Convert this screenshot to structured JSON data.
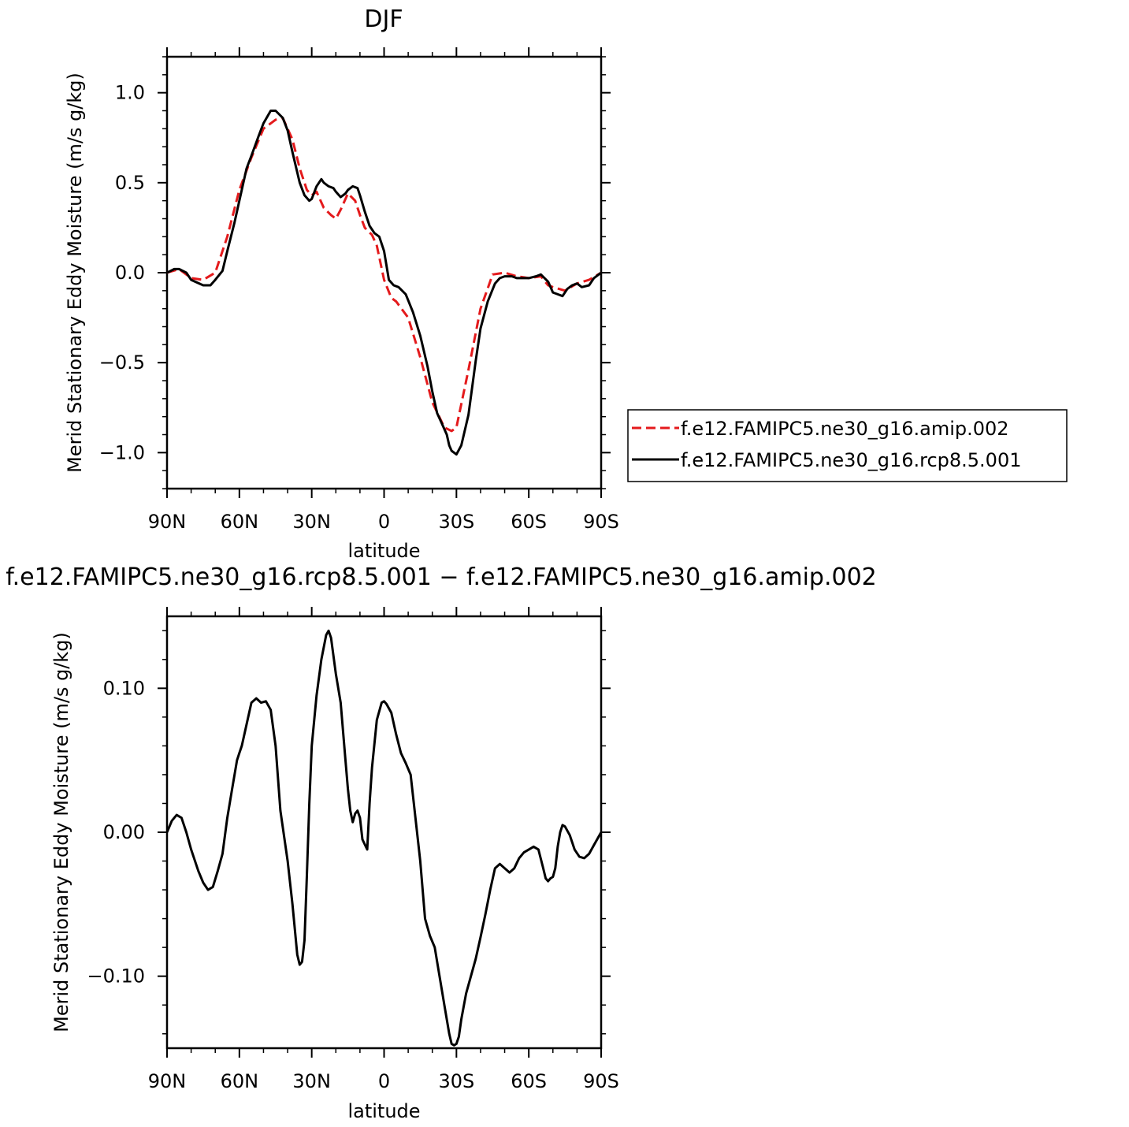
{
  "chart_data": [
    {
      "type": "line",
      "title": "DJF",
      "xlabel": "latitude",
      "ylabel": "Merid Stationary Eddy Moisture (m/s g/kg)",
      "xlim": [
        90,
        -90
      ],
      "ylim": [
        -1.2,
        1.2
      ],
      "x_ticks": [
        90,
        60,
        30,
        0,
        -30,
        -60,
        -90
      ],
      "x_tick_labels": [
        "90N",
        "60N",
        "30N",
        "0",
        "30S",
        "60S",
        "90S"
      ],
      "y_ticks": [
        1.0,
        0.5,
        0.0,
        -0.5,
        -1.0
      ],
      "y_tick_labels": [
        "1.0",
        "0.5",
        "0.0",
        "−0.5",
        "−1.0"
      ],
      "legend_position": "right",
      "series": [
        {
          "name": "f.e12.FAMIPC5.ne30_g16.amip.002",
          "color": "#e41a1c",
          "dash": "dashed",
          "x": [
            90,
            85,
            80,
            75,
            70,
            65,
            60,
            55,
            50,
            45,
            42,
            38,
            35,
            32,
            30,
            28,
            25,
            22,
            20,
            18,
            15,
            12,
            10,
            8,
            5,
            3,
            0,
            -3,
            -5,
            -10,
            -15,
            -20,
            -25,
            -28,
            -30,
            -35,
            -40,
            -45,
            -50,
            -55,
            -60,
            -65,
            -68,
            -70,
            -75,
            -80,
            -85,
            -90
          ],
          "values": [
            0.0,
            0.02,
            -0.03,
            -0.04,
            0.0,
            0.2,
            0.46,
            0.64,
            0.8,
            0.85,
            0.86,
            0.74,
            0.58,
            0.46,
            0.43,
            0.45,
            0.36,
            0.32,
            0.3,
            0.35,
            0.44,
            0.4,
            0.32,
            0.25,
            0.21,
            0.15,
            -0.04,
            -0.14,
            -0.16,
            -0.25,
            -0.47,
            -0.72,
            -0.86,
            -0.88,
            -0.86,
            -0.54,
            -0.2,
            -0.01,
            0.0,
            -0.02,
            -0.03,
            -0.02,
            -0.07,
            -0.08,
            -0.1,
            -0.06,
            -0.04,
            0.0
          ]
        },
        {
          "name": "f.e12.FAMIPC5.ne30_g16.rcp8.5.001",
          "color": "#000000",
          "dash": "solid",
          "x": [
            90,
            87,
            85,
            82,
            80,
            75,
            72,
            70,
            67,
            65,
            62,
            60,
            57,
            55,
            52,
            50,
            47,
            45,
            42,
            40,
            38,
            35,
            33,
            31,
            30,
            28,
            26,
            25,
            23,
            21,
            20,
            18,
            16,
            15,
            13,
            11,
            10,
            8,
            6,
            4,
            2,
            0,
            -2,
            -4,
            -6,
            -9,
            -12,
            -15,
            -18,
            -20,
            -22,
            -24,
            -26,
            -27,
            -28,
            -30,
            -32,
            -35,
            -38,
            -40,
            -43,
            -46,
            -48,
            -50,
            -53,
            -55,
            -58,
            -60,
            -63,
            -65,
            -68,
            -70,
            -72,
            -74,
            -76,
            -78,
            -80,
            -82,
            -85,
            -87,
            -90
          ],
          "values": [
            0.0,
            0.02,
            0.02,
            0.0,
            -0.04,
            -0.07,
            -0.07,
            -0.04,
            0.01,
            0.12,
            0.28,
            0.4,
            0.58,
            0.65,
            0.76,
            0.83,
            0.9,
            0.9,
            0.86,
            0.79,
            0.67,
            0.5,
            0.43,
            0.4,
            0.41,
            0.48,
            0.52,
            0.5,
            0.48,
            0.47,
            0.45,
            0.42,
            0.44,
            0.46,
            0.48,
            0.47,
            0.43,
            0.34,
            0.26,
            0.22,
            0.2,
            0.12,
            -0.04,
            -0.07,
            -0.08,
            -0.12,
            -0.22,
            -0.35,
            -0.52,
            -0.66,
            -0.78,
            -0.84,
            -0.9,
            -0.96,
            -0.99,
            -1.01,
            -0.96,
            -0.79,
            -0.49,
            -0.31,
            -0.16,
            -0.06,
            -0.03,
            -0.02,
            -0.02,
            -0.03,
            -0.03,
            -0.03,
            -0.02,
            -0.01,
            -0.05,
            -0.11,
            -0.12,
            -0.13,
            -0.09,
            -0.07,
            -0.06,
            -0.08,
            -0.07,
            -0.03,
            0.0
          ]
        }
      ]
    },
    {
      "type": "line",
      "title": "f.e12.FAMIPC5.ne30_g16.rcp8.5.001 − f.e12.FAMIPC5.ne30_g16.amip.002",
      "xlabel": "latitude",
      "ylabel": "Merid Stationary Eddy Moisture (m/s g/kg)",
      "xlim": [
        90,
        -90
      ],
      "ylim": [
        -0.15,
        0.15
      ],
      "x_ticks": [
        90,
        60,
        30,
        0,
        -30,
        -60,
        -90
      ],
      "x_tick_labels": [
        "90N",
        "60N",
        "30N",
        "0",
        "30S",
        "60S",
        "90S"
      ],
      "y_ticks": [
        0.1,
        0.0,
        -0.1
      ],
      "y_tick_labels": [
        "0.10",
        "0.00",
        "−0.10"
      ],
      "series": [
        {
          "color": "#000000",
          "dash": "solid",
          "x": [
            90,
            88,
            86,
            84,
            82,
            80,
            77,
            75,
            73,
            71,
            69,
            67,
            65,
            63,
            61,
            60,
            59,
            57,
            55,
            53,
            51,
            49,
            47,
            45,
            43,
            40,
            38,
            36,
            35,
            34,
            33,
            32,
            31,
            30,
            28,
            26,
            24,
            23,
            22,
            20,
            18,
            16,
            15,
            14,
            13,
            12,
            11,
            10,
            9,
            7,
            6,
            5,
            3,
            1,
            0,
            -1,
            -3,
            -5,
            -7,
            -9,
            -11,
            -13,
            -15,
            -17,
            -19,
            -21,
            -23,
            -25,
            -27,
            -28,
            -29,
            -30,
            -31,
            -32,
            -34,
            -36,
            -38,
            -40,
            -42,
            -44,
            -46,
            -48,
            -50,
            -52,
            -54,
            -56,
            -58,
            -60,
            -62,
            -64,
            -66,
            -67,
            -68,
            -69,
            -70,
            -71,
            -72,
            -73,
            -74,
            -75,
            -77,
            -79,
            -81,
            -83,
            -85,
            -87,
            -90
          ],
          "values": [
            0.0,
            0.008,
            0.012,
            0.01,
            0.0,
            -0.012,
            -0.027,
            -0.035,
            -0.04,
            -0.038,
            -0.027,
            -0.015,
            0.01,
            0.03,
            0.05,
            0.055,
            0.06,
            0.075,
            0.09,
            0.093,
            0.09,
            0.091,
            0.085,
            0.06,
            0.015,
            -0.02,
            -0.05,
            -0.085,
            -0.092,
            -0.09,
            -0.075,
            -0.03,
            0.02,
            0.06,
            0.095,
            0.12,
            0.137,
            0.14,
            0.135,
            0.11,
            0.09,
            0.05,
            0.03,
            0.015,
            0.007,
            0.013,
            0.015,
            0.01,
            -0.005,
            -0.012,
            0.02,
            0.045,
            0.078,
            0.09,
            0.091,
            0.089,
            0.083,
            0.068,
            0.055,
            0.048,
            0.04,
            0.01,
            -0.02,
            -0.06,
            -0.072,
            -0.08,
            -0.1,
            -0.12,
            -0.14,
            -0.147,
            -0.148,
            -0.147,
            -0.142,
            -0.13,
            -0.112,
            -0.1,
            -0.088,
            -0.073,
            -0.057,
            -0.04,
            -0.025,
            -0.022,
            -0.025,
            -0.028,
            -0.025,
            -0.018,
            -0.014,
            -0.012,
            -0.01,
            -0.012,
            -0.025,
            -0.032,
            -0.034,
            -0.032,
            -0.031,
            -0.025,
            -0.01,
            0.0,
            0.005,
            0.004,
            -0.002,
            -0.012,
            -0.017,
            -0.018,
            -0.015,
            -0.009,
            0.0
          ]
        }
      ]
    }
  ]
}
